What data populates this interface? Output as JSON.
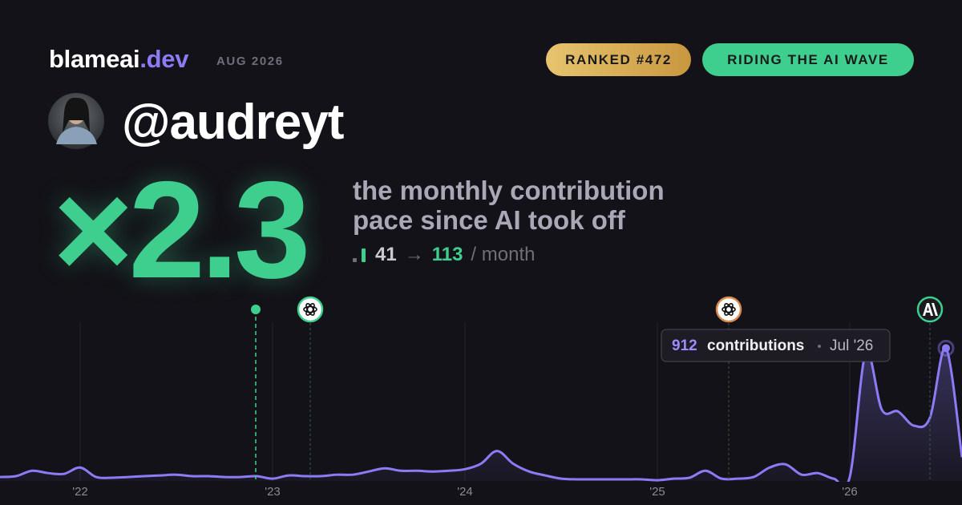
{
  "brand": {
    "name": "blameai",
    "tld": ".dev",
    "date": "AUG 2026"
  },
  "badges": {
    "rank": "RANKED #472",
    "status": "RIDING THE AI WAVE"
  },
  "handle": "@audreyt",
  "multiplier": "×2.3",
  "description": [
    "the monthly contribution",
    "pace since AI took off"
  ],
  "pace": {
    "before": "41",
    "arrow": "→",
    "after": "113",
    "unit": "/ month"
  },
  "chart_data": {
    "type": "area",
    "categories": [
      null,
      null,
      null,
      null,
      null,
      "'22",
      null,
      null,
      null,
      null,
      null,
      null,
      null,
      null,
      null,
      null,
      null,
      "'23",
      null,
      null,
      null,
      null,
      null,
      null,
      null,
      null,
      null,
      null,
      null,
      "'24",
      null,
      null,
      null,
      null,
      null,
      null,
      null,
      null,
      null,
      null,
      null,
      "'25",
      null,
      null,
      null,
      null,
      null,
      null,
      null,
      null,
      null,
      null,
      null,
      "'26",
      null,
      null,
      null,
      null,
      null,
      null,
      null
    ],
    "values": [
      27,
      33,
      70,
      54,
      49,
      92,
      27,
      22,
      27,
      33,
      38,
      43,
      33,
      33,
      27,
      27,
      33,
      16,
      38,
      33,
      33,
      43,
      43,
      65,
      87,
      70,
      70,
      65,
      70,
      81,
      119,
      206,
      119,
      65,
      38,
      16,
      11,
      11,
      11,
      11,
      11,
      5,
      16,
      22,
      70,
      16,
      16,
      27,
      92,
      114,
      43,
      54,
      16,
      27,
      880,
      489,
      478,
      380,
      434,
      912,
      163
    ],
    "color": "#8b7cf6",
    "ylim": [
      0,
      1090
    ],
    "grid": true,
    "tooltip": {
      "label": "contributions",
      "date": "Jul '26"
    }
  }
}
